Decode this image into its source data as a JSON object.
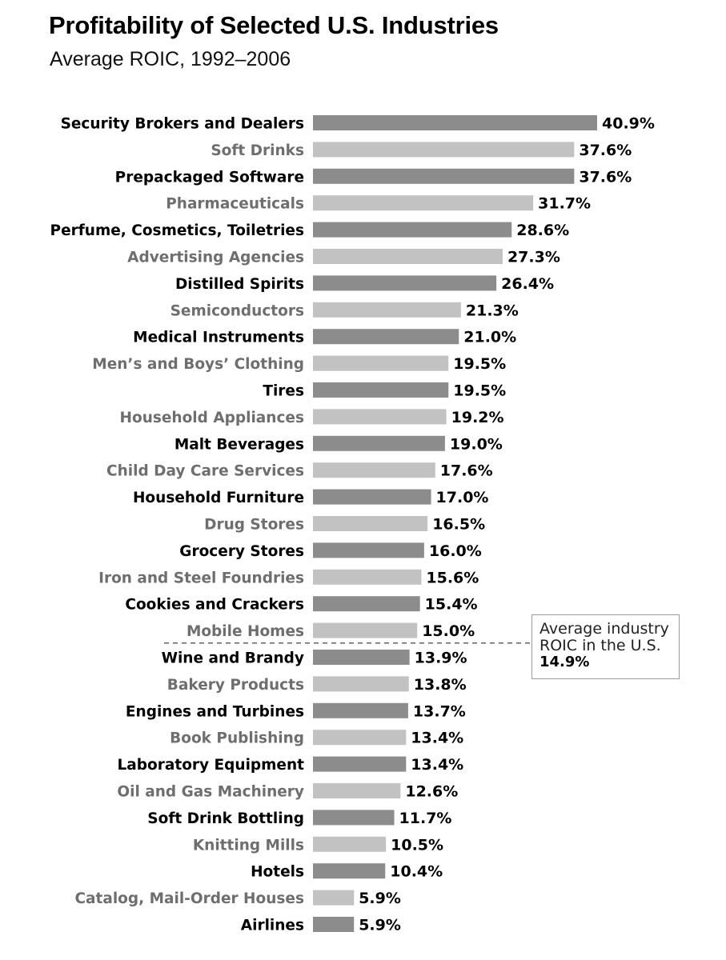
{
  "chart_data": {
    "type": "bar",
    "orientation": "horizontal",
    "title": "Profitability of Selected U.S. Industries",
    "subtitle": "Average ROIC, 1992–2006",
    "unit": "%",
    "xlim": [
      0,
      40.9
    ],
    "categories": [
      "Security Brokers and Dealers",
      "Soft Drinks",
      "Prepackaged Software",
      "Pharmaceuticals",
      "Perfume, Cosmetics, Toiletries",
      "Advertising Agencies",
      "Distilled Spirits",
      "Semiconductors",
      "Medical Instruments",
      "Men’s and Boys’ Clothing",
      "Tires",
      "Household Appliances",
      "Malt Beverages",
      "Child Day Care Services",
      "Household Furniture",
      "Drug Stores",
      "Grocery Stores",
      "Iron and Steel Foundries",
      "Cookies and Crackers",
      "Mobile Homes",
      "Wine and Brandy",
      "Bakery Products",
      "Engines and Turbines",
      "Book Publishing",
      "Laboratory Equipment",
      "Oil and Gas Machinery",
      "Soft Drink Bottling",
      "Knitting Mills",
      "Hotels",
      "Catalog, Mail-Order Houses",
      "Airlines"
    ],
    "values": [
      40.9,
      37.6,
      37.6,
      31.7,
      28.6,
      27.3,
      26.4,
      21.3,
      21.0,
      19.5,
      19.5,
      19.2,
      19.0,
      17.6,
      17.0,
      16.5,
      16.0,
      15.6,
      15.4,
      15.0,
      13.9,
      13.8,
      13.7,
      13.4,
      13.4,
      12.6,
      11.7,
      10.5,
      10.4,
      5.9,
      5.9
    ],
    "value_labels": [
      "40.9%",
      "37.6%",
      "37.6%",
      "31.7%",
      "28.6%",
      "27.3%",
      "26.4%",
      "21.3%",
      "21.0%",
      "19.5%",
      "19.5%",
      "19.2%",
      "19.0%",
      "17.6%",
      "17.0%",
      "16.5%",
      "16.0%",
      "15.6%",
      "15.4%",
      "15.0%",
      "13.9%",
      "13.8%",
      "13.7%",
      "13.4%",
      "13.4%",
      "12.6%",
      "11.7%",
      "10.5%",
      "10.4%",
      "5.9%",
      "5.9%"
    ],
    "annotation": {
      "text_line1": "Average industry",
      "text_line2": "ROIC in the U.S.",
      "value_label": "14.9%",
      "value": 14.9,
      "style": "dashed-line"
    },
    "colors": {
      "bar_dark": "#8c8c8c",
      "bar_light": "#c2c2c2",
      "label_dark": "#000000",
      "label_light": "#6e6e6e",
      "dash": "#555555"
    }
  }
}
